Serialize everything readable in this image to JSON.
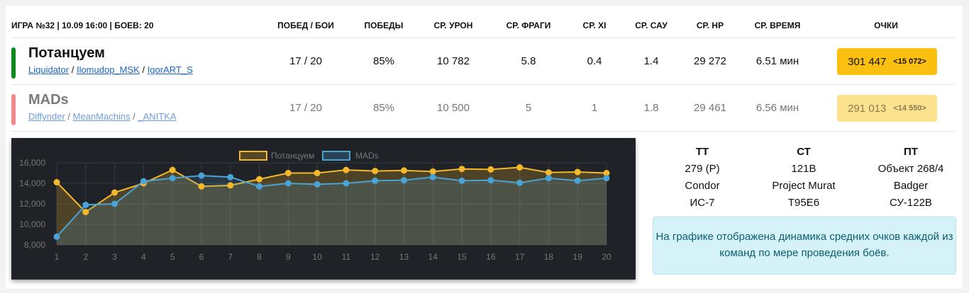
{
  "header": {
    "game_info": "ИГРА №32 | 10.09 16:00 | БОЕВ: 20",
    "columns": [
      "ПОБЕД / БОИ",
      "ПОБЕДЫ",
      "СР. УРОН",
      "СР. ФРАГИ",
      "СР. XI",
      "СР. САУ",
      "СР. HP",
      "СР. ВРЕМЯ",
      "ОЧКИ"
    ]
  },
  "teams": [
    {
      "name": "Потанцуем",
      "color": "#0a8a1f",
      "players": [
        "Liquidator",
        "Ilomudop_MSK",
        "IgorART_S"
      ],
      "stats": [
        "17 / 20",
        "85%",
        "10 782",
        "5.8",
        "0.4",
        "1.4",
        "29 272",
        "6.51 мин"
      ],
      "points": "301 447",
      "delta": "<15 072>",
      "points_bg": "#fbbf10"
    },
    {
      "name": "MADs",
      "color": "#f08a8a",
      "players": [
        "Diffynder",
        "MeanMachins",
        "_ANITKA"
      ],
      "stats": [
        "17 / 20",
        "85%",
        "10 500",
        "5",
        "1",
        "1.8",
        "29 461",
        "6.56 мин"
      ],
      "points": "291 013",
      "delta": "<14 550>",
      "points_bg": "#fce18e"
    }
  ],
  "tanks": {
    "columns": [
      {
        "header": "ТТ",
        "items": [
          "279 (Р)",
          "Condor",
          "ИС-7"
        ]
      },
      {
        "header": "СТ",
        "items": [
          "121B",
          "Project Murat",
          "T95E6"
        ]
      },
      {
        "header": "ПТ",
        "items": [
          "Объект 268/4",
          "Badger",
          "СУ-122В"
        ]
      }
    ]
  },
  "note": "На графике отображена динамика средних очков каждой из команд по мере проведения боёв.",
  "chart_data": {
    "type": "area",
    "x": [
      1,
      2,
      3,
      4,
      5,
      6,
      7,
      8,
      9,
      10,
      11,
      12,
      13,
      14,
      15,
      16,
      17,
      18,
      19,
      20
    ],
    "series": [
      {
        "name": "Потанцуем",
        "color": "#f5b82a",
        "values": [
          14100,
          11200,
          13100,
          14000,
          15300,
          13700,
          13800,
          14400,
          15000,
          15000,
          15300,
          15200,
          15250,
          15150,
          15400,
          15350,
          15550,
          15050,
          15100,
          15000
        ]
      },
      {
        "name": "MADs",
        "color": "#4aa3d6",
        "values": [
          8800,
          11900,
          12000,
          14200,
          14500,
          14750,
          14600,
          13700,
          14000,
          13900,
          14000,
          14250,
          14300,
          14600,
          14250,
          14300,
          14050,
          14500,
          14250,
          14500
        ]
      }
    ],
    "yticks": [
      "16,000",
      "14,000",
      "12,000",
      "10,000",
      "8,000"
    ],
    "ylim": [
      8000,
      16000
    ],
    "legend": "top-center",
    "grid": true
  }
}
